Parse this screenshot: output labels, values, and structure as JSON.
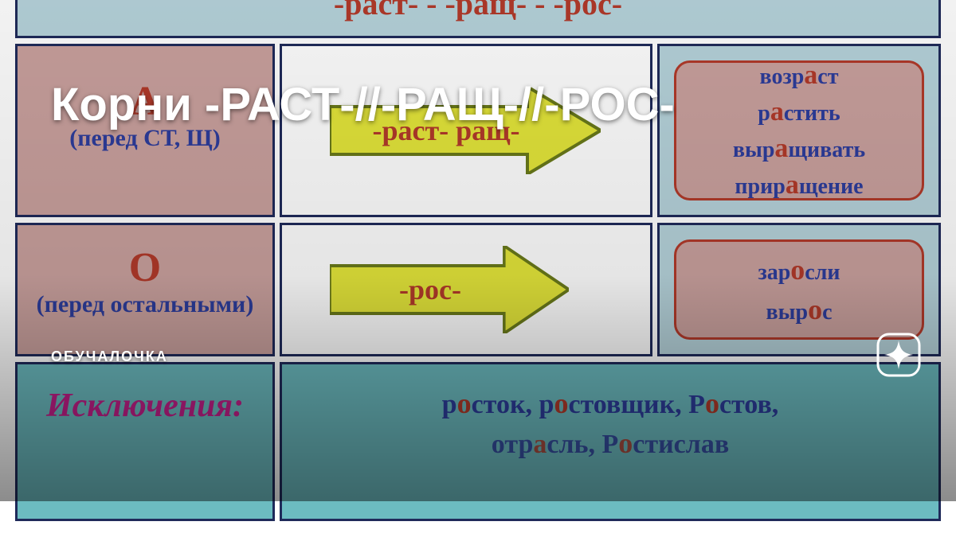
{
  "colors": {
    "border": "#1f2a5a",
    "pink": "#caa19e",
    "blue_cell": "#b6d3db",
    "teal": "#6cbcc1",
    "red_text": "#b23a2a",
    "blue_text": "#2d3d9c",
    "magenta": "#c41f8a",
    "arrow_fill": "#e4e63a",
    "arrow_stroke": "#6a7a1a",
    "overlay_icon": "#ffffff"
  },
  "header": "-раст- - -ращ- - -рос-",
  "row1": {
    "letter": "А",
    "condition": "(перед СТ, Щ)",
    "arrow_label": "-раст-  ращ-"
  },
  "row2": {
    "letter": "О",
    "condition": "(перед остальными)",
    "arrow_label": "-рос-"
  },
  "examples_top": [
    [
      [
        "возр",
        "",
        ""
      ],
      [
        "а",
        "hi-a",
        ""
      ],
      [
        "ст",
        "",
        ""
      ]
    ],
    [
      [
        "р",
        "",
        ""
      ],
      [
        "а",
        "hi-a",
        ""
      ],
      [
        "стить",
        "",
        ""
      ]
    ],
    [
      [
        "выр",
        "",
        ""
      ],
      [
        "а",
        "hi-a",
        ""
      ],
      [
        "щивать",
        "",
        ""
      ]
    ],
    [
      [
        "прир",
        "",
        ""
      ],
      [
        "а",
        "hi-a",
        ""
      ],
      [
        "щение",
        "",
        ""
      ]
    ]
  ],
  "examples_mid": [
    [
      [
        "зар",
        "",
        ""
      ],
      [
        "о",
        "hi-o",
        ""
      ],
      [
        "сли",
        "",
        ""
      ]
    ],
    [
      [
        "выр",
        "",
        ""
      ],
      [
        "о",
        "hi-o",
        ""
      ],
      [
        "с",
        "",
        ""
      ]
    ]
  ],
  "exceptions_label": "Исключения:",
  "exceptions_line": [
    [
      "р",
      ""
    ],
    [
      "о",
      "hi-o"
    ],
    [
      "сток, р",
      ""
    ],
    [
      "о",
      "hi-o"
    ],
    [
      "стовщик, Р",
      ""
    ],
    [
      "о",
      "hi-O"
    ],
    [
      "стов,",
      ""
    ]
  ],
  "exceptions_line2_visible": [
    [
      "отр",
      ""
    ],
    [
      "а",
      "hi-a"
    ],
    [
      "сль, Р",
      ""
    ],
    [
      "о",
      "hi-O"
    ],
    [
      "стислав",
      ""
    ]
  ],
  "overlay": {
    "title": "Корни -РАСТ-//-РАЩ-//-РОС-",
    "caption": "ОБУЧАЛОЧКА"
  }
}
